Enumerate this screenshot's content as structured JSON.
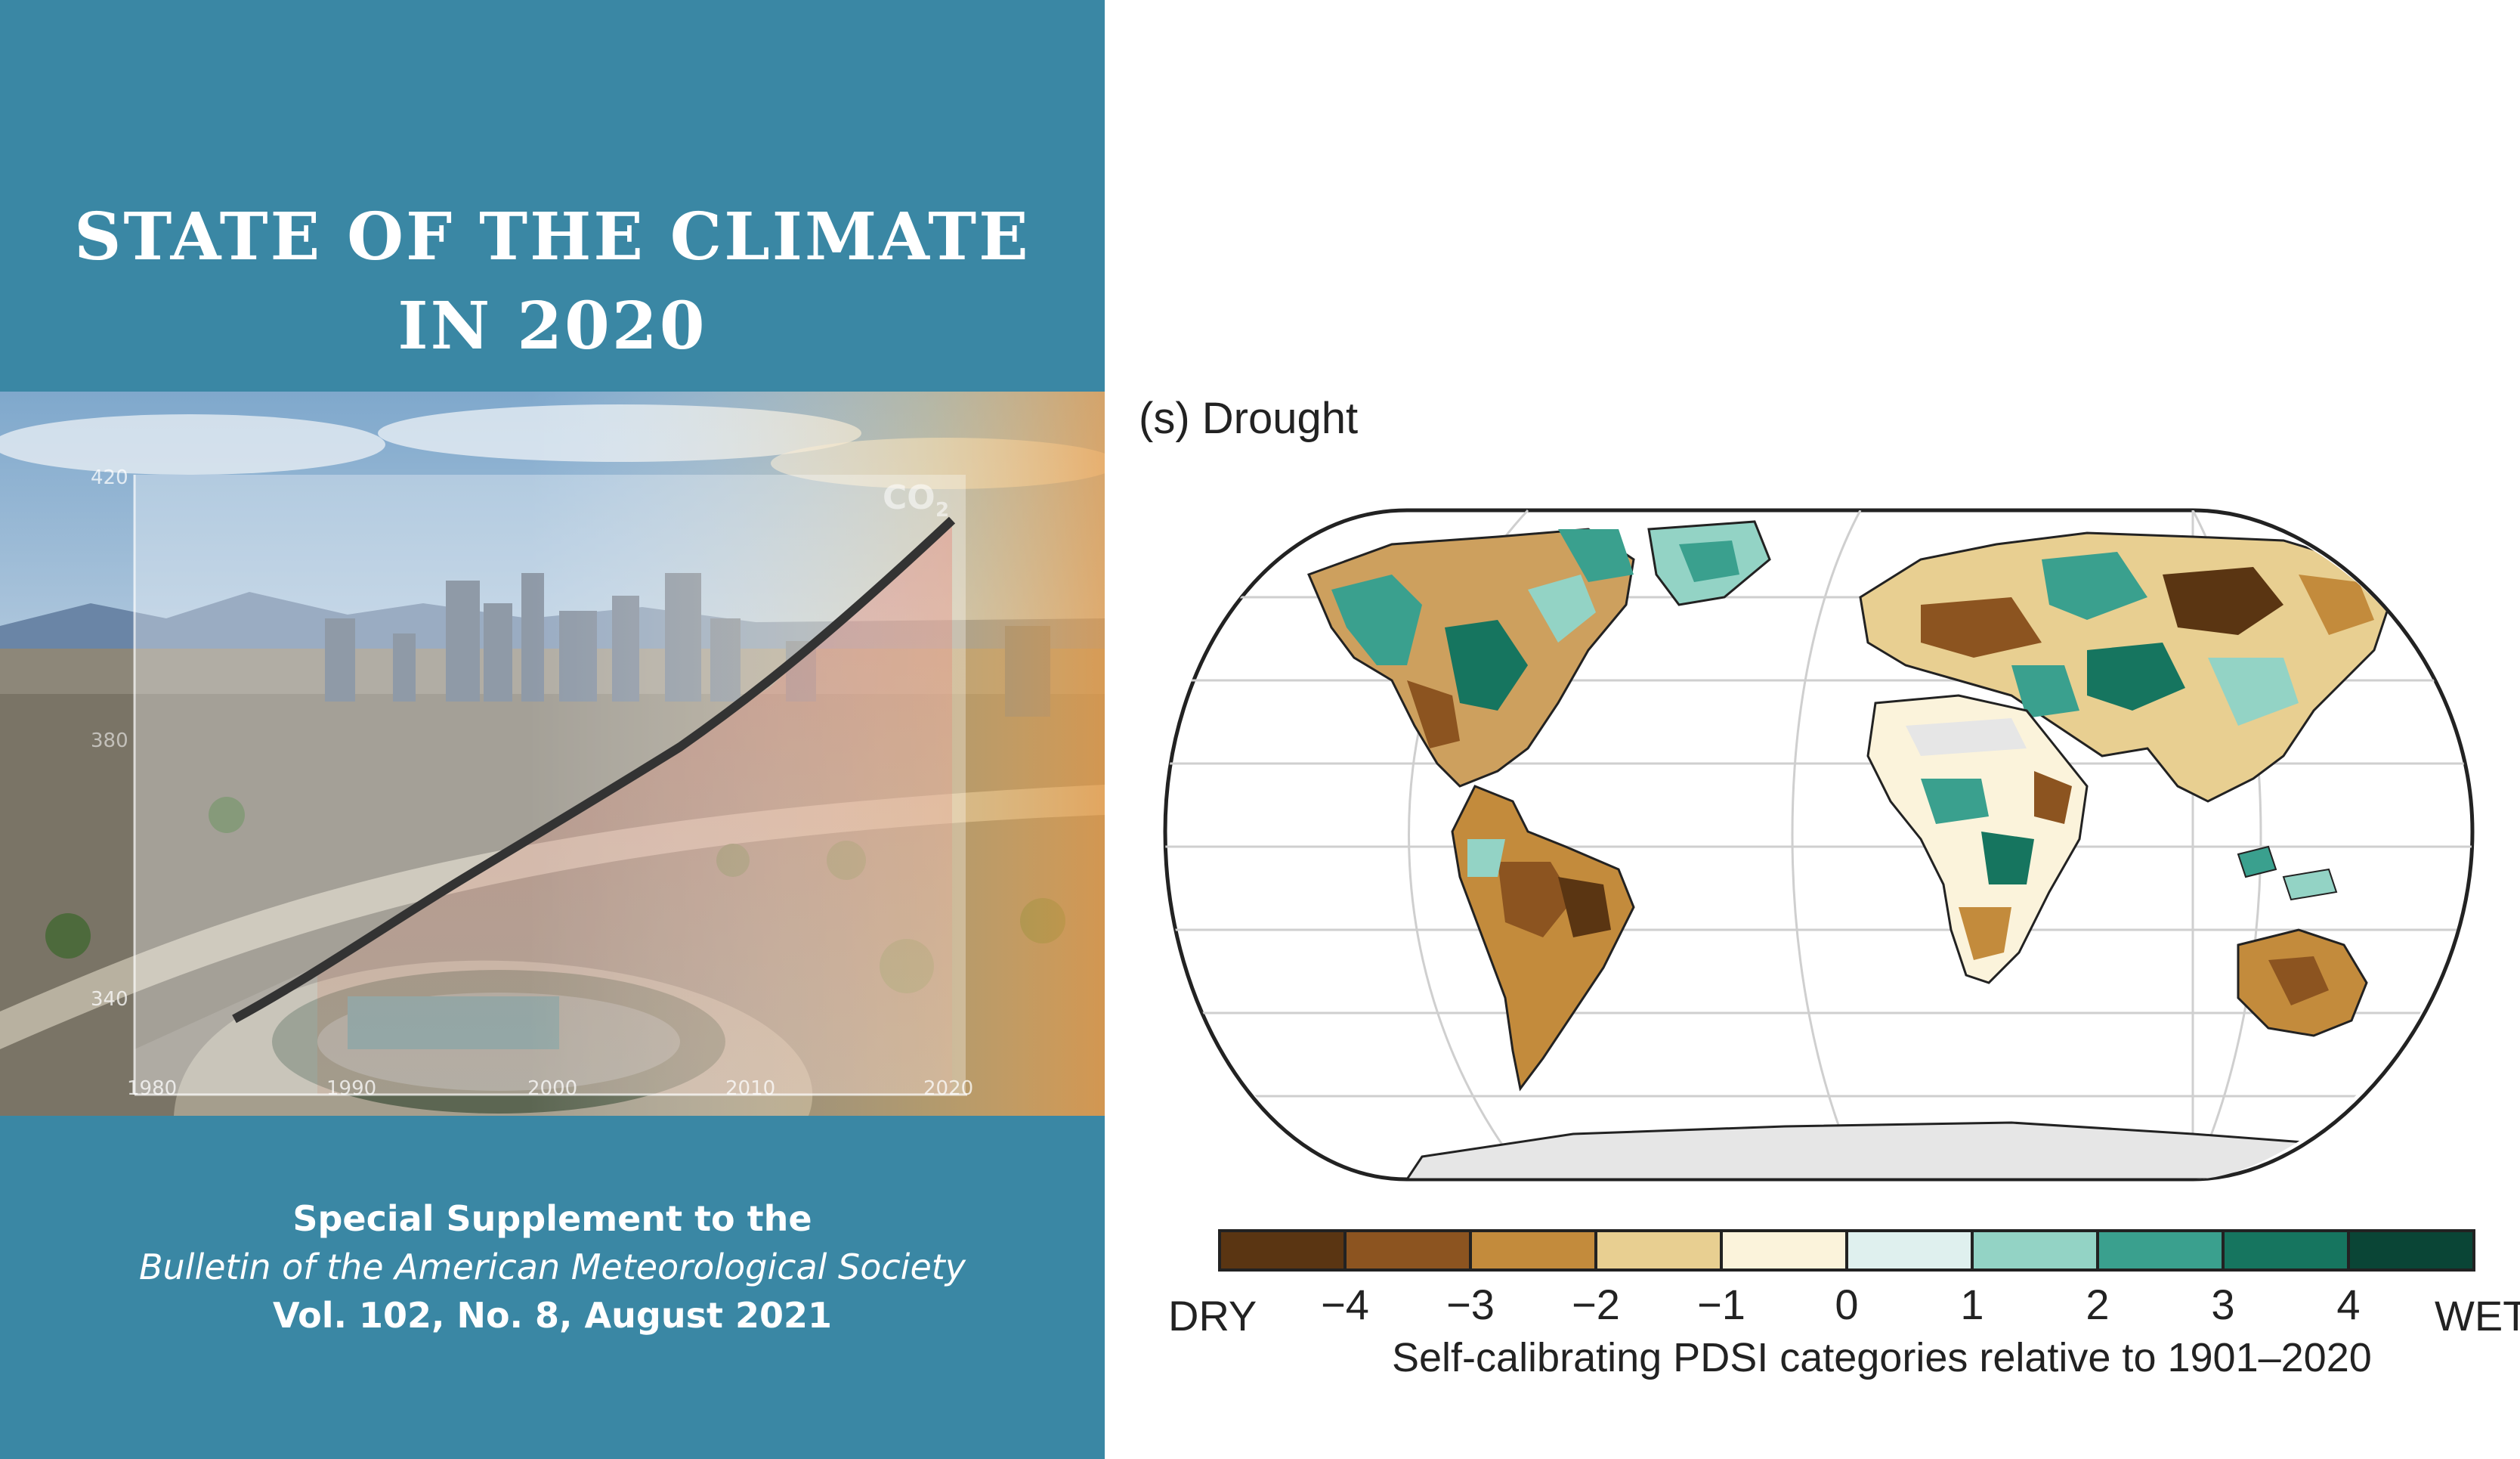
{
  "cover": {
    "title_line1": "STATE OF THE CLIMATE",
    "title_line2": "IN 2020",
    "co2_label": "CO",
    "co2_subscript": "2",
    "y_ticks": [
      "420",
      "380",
      "340"
    ],
    "x_ticks": [
      "1980",
      "1990",
      "2000",
      "2010",
      "2020"
    ],
    "footer_line1": "Special Supplement to the",
    "footer_line2": "Bulletin of the American Meteorological Society",
    "footer_line3": "Vol. 102, No. 8, August 2021",
    "background_color": "#3a87a4"
  },
  "figure": {
    "panel_label": "(s) Drought",
    "colorbar": {
      "label": "Self-calibrating PDSI categories relative to 1901–2020",
      "end_left": "DRY",
      "end_right": "WET",
      "ticks": [
        "−4",
        "−3",
        "−2",
        "−1",
        "0",
        "1",
        "2",
        "3",
        "4"
      ],
      "colors": [
        "#5a3512",
        "#8c5420",
        "#c38b3c",
        "#e8cf91",
        "#fbf3db",
        "#dff0ee",
        "#93d3c5",
        "#3aa08e",
        "#16755f",
        "#0a4536"
      ]
    }
  }
}
